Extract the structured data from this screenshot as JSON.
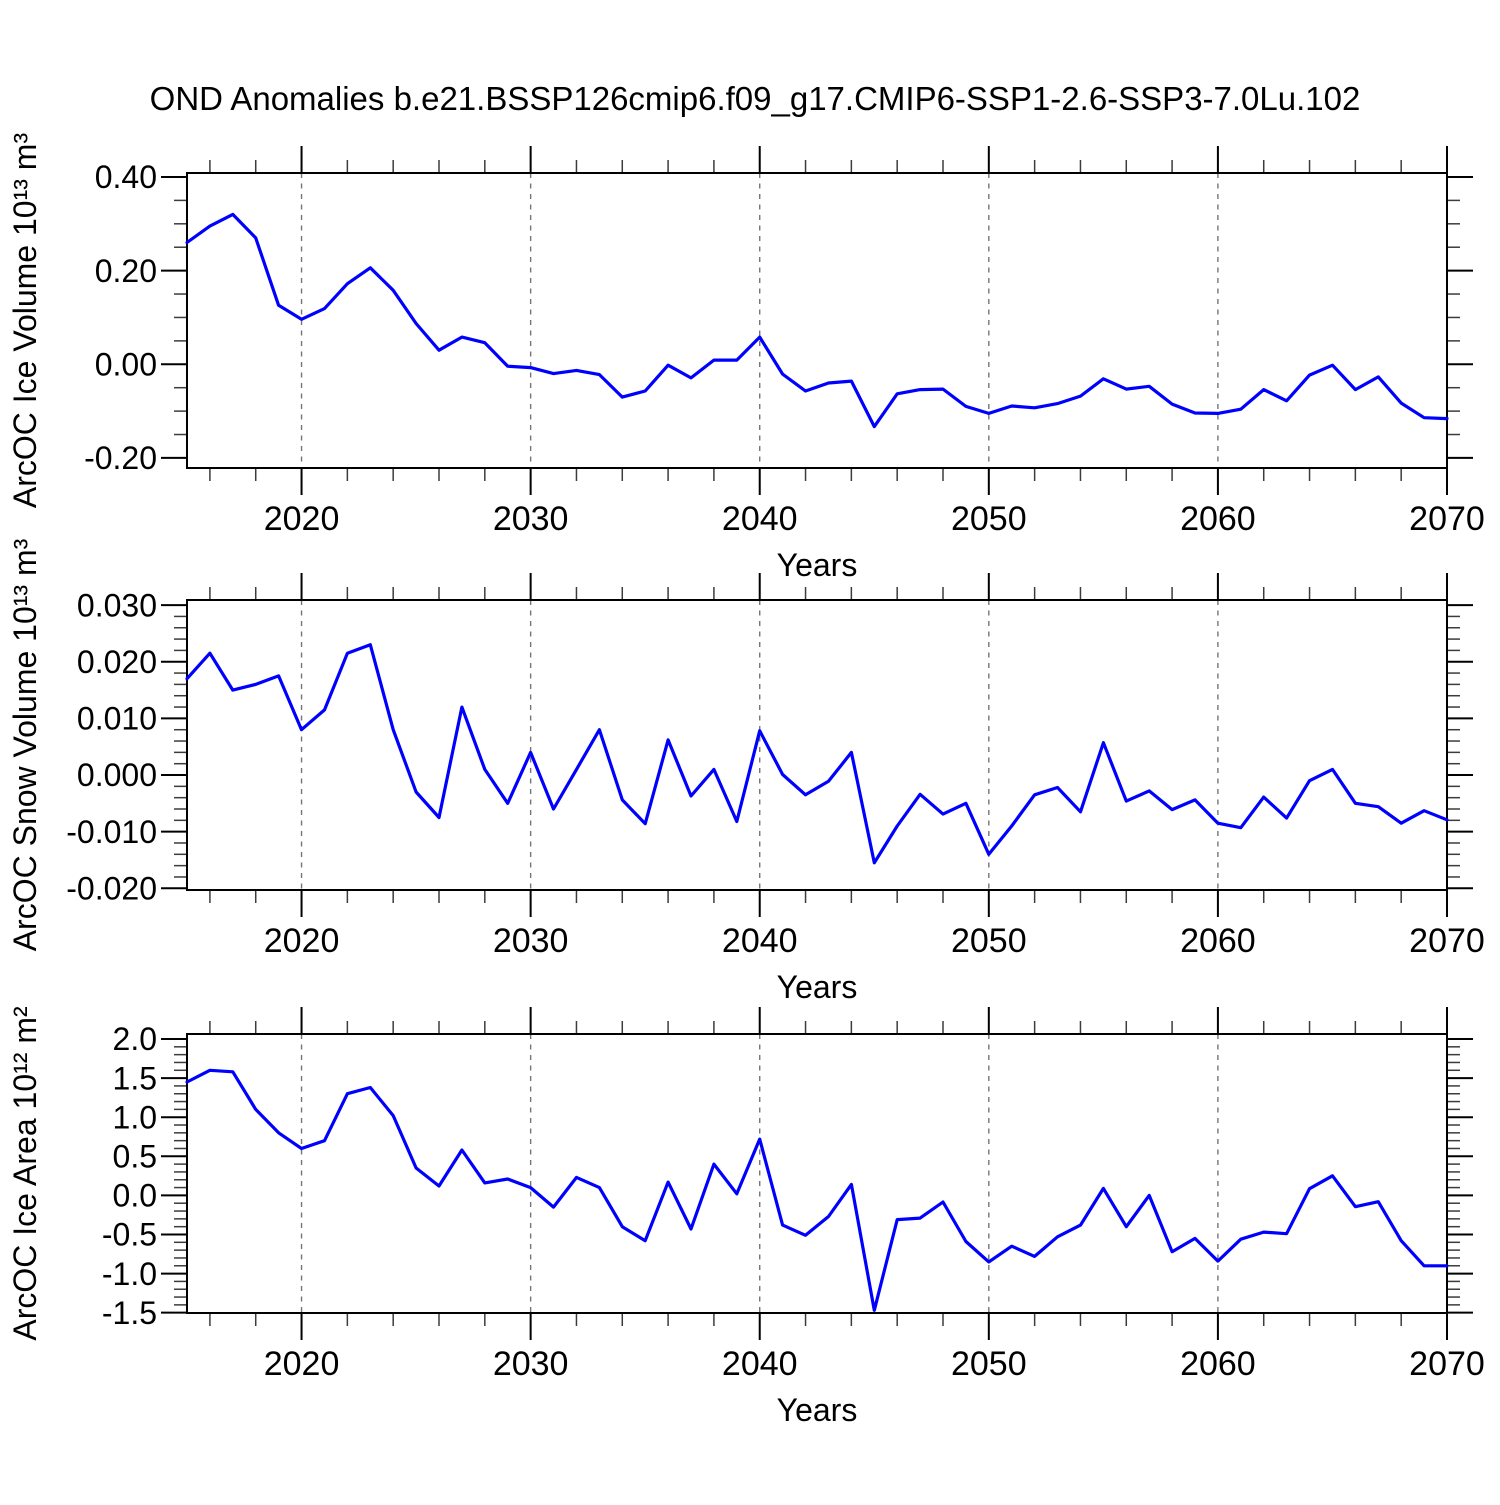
{
  "title": "OND Anomalies b.e21.BSSP126cmip6.f09_g17.CMIP6-SSP1-2.6-SSP3-7.0Lu.102",
  "figure": {
    "background": "#ffffff",
    "line_color": "#0000ff",
    "axis_color": "#000000",
    "grid_color": "#757575"
  },
  "years": [
    2015,
    2016,
    2017,
    2018,
    2019,
    2020,
    2021,
    2022,
    2023,
    2024,
    2025,
    2026,
    2027,
    2028,
    2029,
    2030,
    2031,
    2032,
    2033,
    2034,
    2035,
    2036,
    2037,
    2038,
    2039,
    2040,
    2041,
    2042,
    2043,
    2044,
    2045,
    2046,
    2047,
    2048,
    2049,
    2050,
    2051,
    2052,
    2053,
    2054,
    2055,
    2056,
    2057,
    2058,
    2059,
    2060,
    2061,
    2062,
    2063,
    2064,
    2065,
    2066,
    2067,
    2068,
    2069,
    2070
  ],
  "chart_data": [
    {
      "type": "line",
      "name": "ice-volume",
      "ylabel": "ArcOC Ice Volume 10¹³ m³",
      "xlabel": "Years",
      "xlim": [
        2015,
        2070
      ],
      "ylim": [
        -0.2215,
        0.4085
      ],
      "grid": "x-dashed",
      "legend": "none",
      "xticks": {
        "major": [
          2020,
          2030,
          2040,
          2050,
          2060,
          2070
        ],
        "labels": [
          "2020",
          "2030",
          "2040",
          "2050",
          "2060",
          "2070"
        ],
        "minor_step": 2
      },
      "yticks": {
        "major": [
          0.4,
          0.2,
          0.0,
          -0.2
        ],
        "labels": [
          "0.40",
          "0.20",
          "0.00",
          "-0.20"
        ],
        "minor_step": 0.05
      },
      "gridlines_x": [
        2020,
        2030,
        2040,
        2050,
        2060
      ],
      "values": [
        0.26,
        0.295,
        0.32,
        0.27,
        0.126,
        0.096,
        0.119,
        0.172,
        0.206,
        0.158,
        0.087,
        0.03,
        0.058,
        0.046,
        -0.004,
        -0.007,
        -0.02,
        -0.013,
        -0.022,
        -0.07,
        -0.057,
        -0.002,
        -0.029,
        0.009,
        0.009,
        0.058,
        -0.021,
        -0.057,
        -0.04,
        -0.036,
        -0.133,
        -0.063,
        -0.054,
        -0.053,
        -0.09,
        -0.105,
        -0.089,
        -0.093,
        -0.084,
        -0.068,
        -0.031,
        -0.053,
        -0.047,
        -0.085,
        -0.104,
        -0.105,
        -0.096,
        -0.054,
        -0.078,
        -0.023,
        -0.002,
        -0.054,
        -0.027,
        -0.083,
        -0.114,
        -0.116
      ]
    },
    {
      "type": "line",
      "name": "snow-volume",
      "ylabel": "ArcOC Snow Volume 10¹³ m³",
      "xlabel": "Years",
      "xlim": [
        2015,
        2070
      ],
      "ylim": [
        -0.0203,
        0.0309
      ],
      "grid": "x-dashed",
      "legend": "none",
      "xticks": {
        "major": [
          2020,
          2030,
          2040,
          2050,
          2060,
          2070
        ],
        "labels": [
          "2020",
          "2030",
          "2040",
          "2050",
          "2060",
          "2070"
        ],
        "minor_step": 2
      },
      "yticks": {
        "major": [
          0.03,
          0.02,
          0.01,
          0.0,
          -0.01,
          -0.02
        ],
        "labels": [
          "0.030",
          "0.020",
          "0.010",
          "0.000",
          "-0.010",
          "-0.020"
        ],
        "minor_step": 0.002
      },
      "gridlines_x": [
        2020,
        2030,
        2040,
        2050,
        2060
      ],
      "values": [
        0.017,
        0.0215,
        0.015,
        0.016,
        0.0175,
        0.008,
        0.0115,
        0.0215,
        0.023,
        0.008,
        -0.003,
        -0.0075,
        0.012,
        0.001,
        -0.005,
        0.004,
        -0.006,
        0.001,
        0.008,
        -0.0044,
        -0.0086,
        0.0062,
        -0.0037,
        0.001,
        -0.0082,
        0.0078,
        0.0001,
        -0.0035,
        -0.0011,
        0.004,
        -0.0155,
        -0.009,
        -0.0034,
        -0.0069,
        -0.005,
        -0.014,
        -0.009,
        -0.0035,
        -0.0022,
        -0.0065,
        0.0057,
        -0.0046,
        -0.0028,
        -0.0061,
        -0.0044,
        -0.0085,
        -0.0093,
        -0.0039,
        -0.0076,
        -0.001,
        0.001,
        -0.005,
        -0.0056,
        -0.0085,
        -0.0063,
        -0.0079
      ]
    },
    {
      "type": "line",
      "name": "ice-area",
      "ylabel": "ArcOC Ice Area 10¹² m²",
      "xlabel": "Years",
      "xlim": [
        2015,
        2070
      ],
      "ylim": [
        -1.504,
        2.064
      ],
      "grid": "x-dashed",
      "legend": "none",
      "xticks": {
        "major": [
          2020,
          2030,
          2040,
          2050,
          2060,
          2070
        ],
        "labels": [
          "2020",
          "2030",
          "2040",
          "2050",
          "2060",
          "2070"
        ],
        "minor_step": 2
      },
      "yticks": {
        "major": [
          2.0,
          1.5,
          1.0,
          0.5,
          0.0,
          -0.5,
          -1.0,
          -1.5
        ],
        "labels": [
          "2.0",
          "1.5",
          "1.0",
          "0.5",
          "0.0",
          "-0.5",
          "-1.0",
          "-1.5"
        ],
        "minor_step": 0.1
      },
      "gridlines_x": [
        2020,
        2030,
        2040,
        2050,
        2060
      ],
      "values": [
        1.45,
        1.6,
        1.58,
        1.1,
        0.8,
        0.6,
        0.7,
        1.3,
        1.38,
        1.02,
        0.35,
        0.12,
        0.58,
        0.16,
        0.21,
        0.1,
        -0.15,
        0.23,
        0.1,
        -0.4,
        -0.58,
        0.17,
        -0.43,
        0.4,
        0.02,
        0.72,
        -0.38,
        -0.51,
        -0.27,
        0.14,
        -1.47,
        -0.31,
        -0.29,
        -0.085,
        -0.59,
        -0.85,
        -0.65,
        -0.78,
        -0.53,
        -0.38,
        0.09,
        -0.4,
        0.0,
        -0.72,
        -0.55,
        -0.84,
        -0.56,
        -0.47,
        -0.49,
        0.085,
        0.25,
        -0.145,
        -0.08,
        -0.58,
        -0.9,
        -0.9
      ]
    }
  ]
}
